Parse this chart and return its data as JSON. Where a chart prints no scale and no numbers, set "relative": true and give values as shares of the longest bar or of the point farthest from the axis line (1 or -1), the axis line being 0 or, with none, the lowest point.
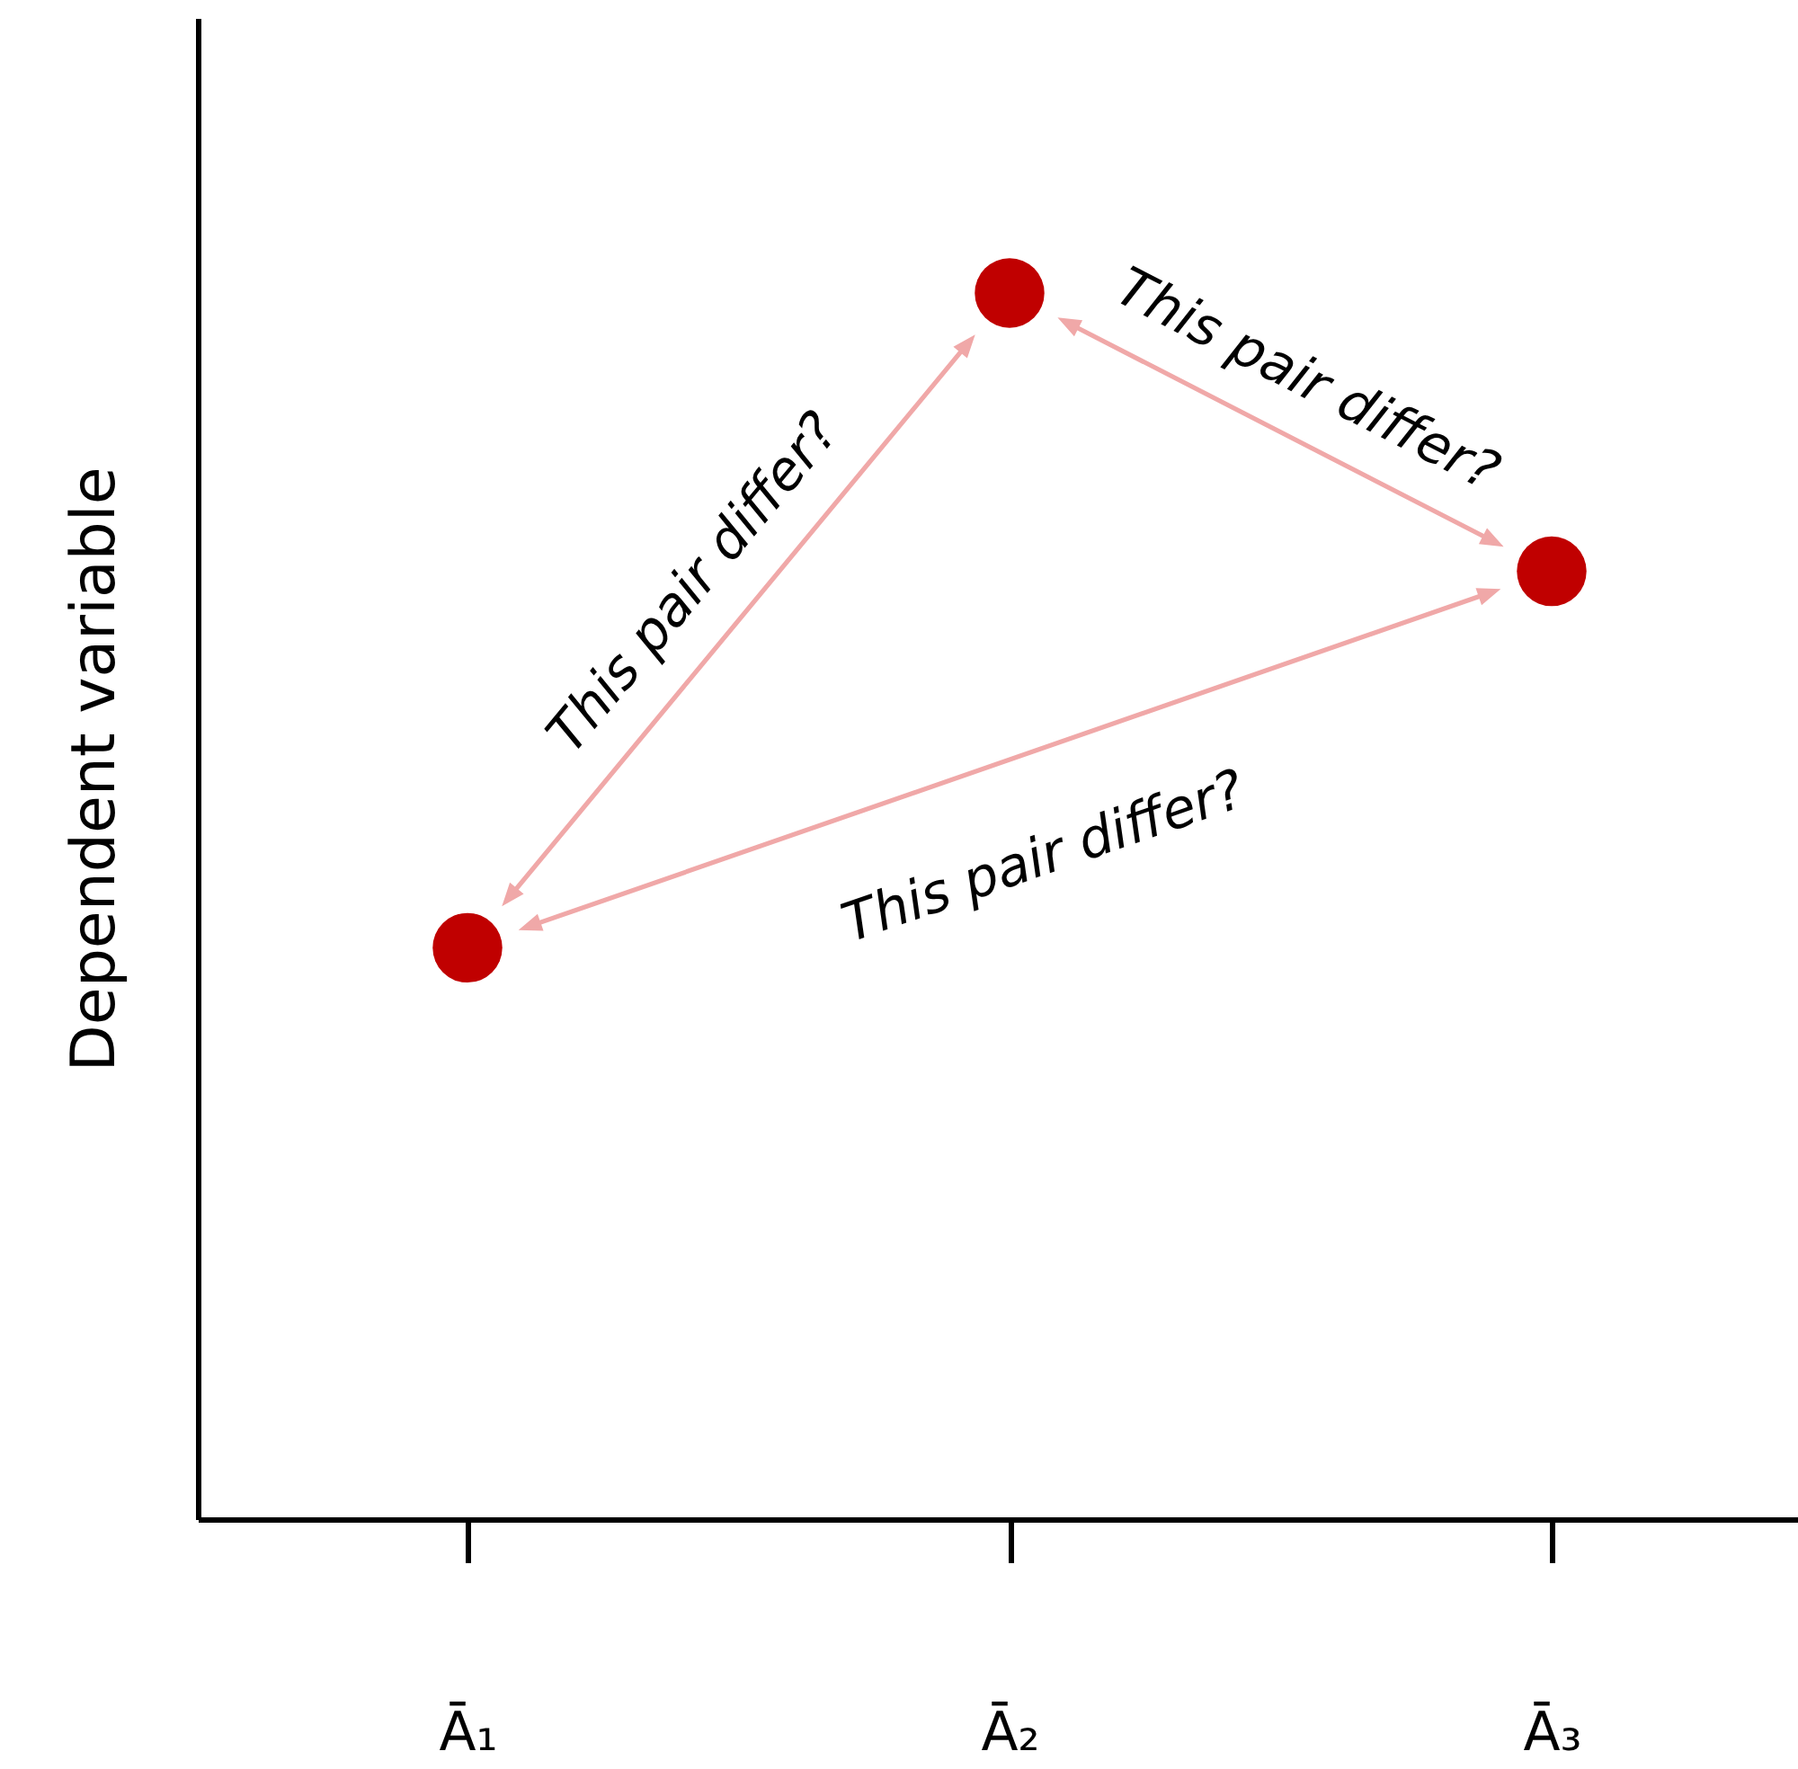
{
  "chart_data": {
    "type": "scatter",
    "relative": true,
    "ylabel": "Dependent variable",
    "categories": [
      "Ā₁",
      "Ā₂",
      "Ā₃"
    ],
    "values": [
      0.466,
      1,
      0.773
    ],
    "color": "#c00000",
    "marker": "circle",
    "grid": false,
    "annotations": [
      "This pair differ?",
      "This pair differ?",
      "This pair differ?"
    ]
  }
}
